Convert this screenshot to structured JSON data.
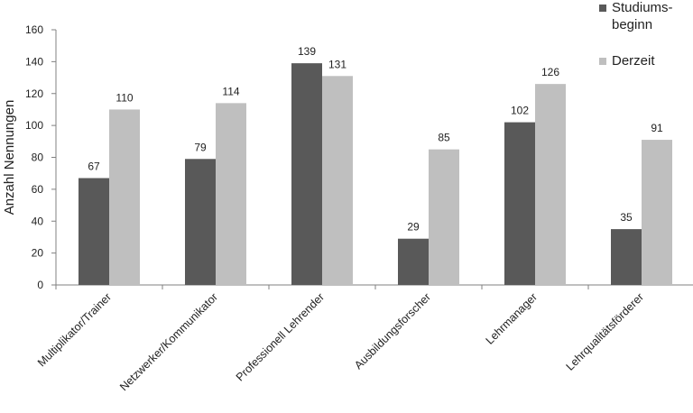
{
  "chart_data": {
    "type": "bar",
    "title": "",
    "xlabel": "",
    "ylabel": "Anzahl Nennungen",
    "ylim": [
      0,
      160
    ],
    "yticks": [
      0,
      20,
      40,
      60,
      80,
      100,
      120,
      140,
      160
    ],
    "categories": [
      "Multiplikator/Trainer",
      "Netzwerker/Kommunikator",
      "Professionell Lehrender",
      "Ausbildungsforscher",
      "Lehrmanager",
      "Lehrqualitätsförderer"
    ],
    "series": [
      {
        "name": "Studiums-beginn",
        "name_lines": [
          "Studiums-",
          "beginn"
        ],
        "color": "#595959",
        "values": [
          67,
          79,
          139,
          29,
          102,
          35
        ]
      },
      {
        "name": "Derzeit",
        "name_lines": [
          "Derzeit"
        ],
        "color": "#bfbfbf",
        "values": [
          110,
          114,
          131,
          85,
          126,
          91
        ]
      }
    ],
    "grid": false,
    "legend_position": "top-right"
  }
}
